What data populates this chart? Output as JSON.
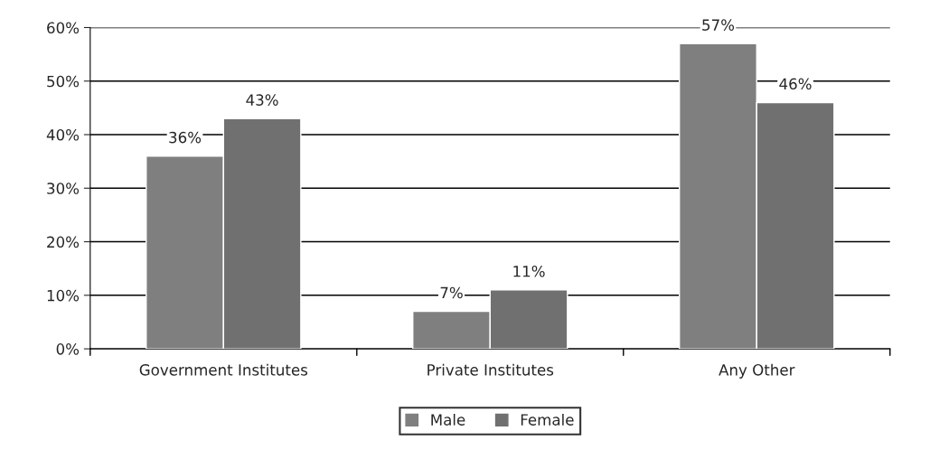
{
  "chart_data": {
    "type": "bar",
    "categories": [
      "Government Institutes",
      "Private Institutes",
      "Any Other"
    ],
    "series": [
      {
        "name": "Male",
        "color": "#7f7f7f",
        "values": [
          36,
          7,
          57
        ],
        "value_labels": [
          "36%",
          "7%",
          "57%"
        ]
      },
      {
        "name": "Female",
        "color": "#707070",
        "values": [
          43,
          11,
          46
        ],
        "value_labels": [
          "43%",
          "11%",
          "46%"
        ]
      }
    ],
    "ylim": [
      0,
      60
    ],
    "yticks": [
      {
        "value": 0,
        "label": "0%"
      },
      {
        "value": 10,
        "label": "10%"
      },
      {
        "value": 20,
        "label": "20%"
      },
      {
        "value": 30,
        "label": "30%"
      },
      {
        "value": 40,
        "label": "40%"
      },
      {
        "value": 50,
        "label": "50%"
      },
      {
        "value": 60,
        "label": "60%"
      }
    ],
    "grid": "y",
    "legend": "bottom"
  }
}
